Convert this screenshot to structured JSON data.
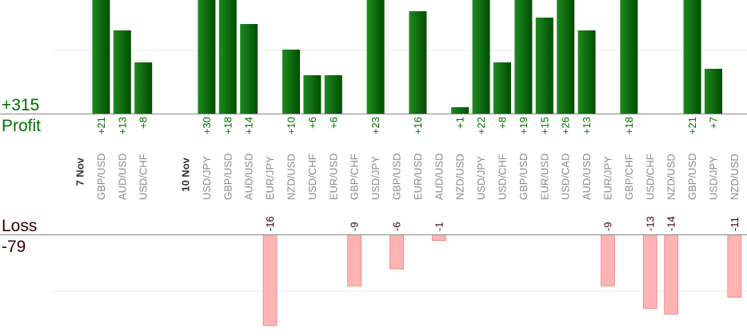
{
  "chart_data": {
    "type": "bar",
    "profit_label": "Profit",
    "loss_label": "Loss",
    "profit_total": "+315",
    "loss_total": "-79",
    "colors": {
      "profit_dark": "#004d00",
      "profit_light": "#1f8a1f",
      "profit_text": "#007000",
      "loss_fill": "#ffb3b3",
      "loss_border": "#f08080",
      "loss_text": "#3a0000",
      "pair_text": "#8a8a8a",
      "date_text": "#333333",
      "axis": "#888888",
      "grid": "#eeeeee"
    },
    "grid": true,
    "slots": [
      {
        "date": "7 Nov"
      },
      {
        "pair": "GBP/USD",
        "value": 21
      },
      {
        "pair": "AUD/USD",
        "value": 13
      },
      {
        "pair": "USD/CHF",
        "value": 8
      },
      {},
      {
        "date": "10 Nov"
      },
      {
        "pair": "USD/JPY",
        "value": 30
      },
      {
        "pair": "GBP/USD",
        "value": 18
      },
      {
        "pair": "AUD/USD",
        "value": 14
      },
      {
        "pair": "EUR/JPY",
        "value": -16
      },
      {
        "pair": "NZD/USD",
        "value": 10
      },
      {
        "pair": "USD/CHF",
        "value": 6
      },
      {
        "pair": "EUR/USD",
        "value": 6
      },
      {
        "pair": "GBP/CHF",
        "value": -9
      },
      {
        "pair": "USD/JPY",
        "value": 23
      },
      {
        "pair": "GBP/USD",
        "value": -6
      },
      {
        "pair": "EUR/USD",
        "value": 16
      },
      {
        "pair": "AUD/USD",
        "value": -1
      },
      {
        "pair": "NZD/USD",
        "value": 1
      },
      {
        "pair": "USD/JPY",
        "value": 22
      },
      {
        "pair": "USD/CHF",
        "value": 8
      },
      {
        "pair": "GBP/USD",
        "value": 19
      },
      {
        "pair": "EUR/USD",
        "value": 15
      },
      {
        "pair": "USD/CAD",
        "value": 26
      },
      {
        "pair": "AUD/USD",
        "value": 13
      },
      {
        "pair": "EUR/JPY",
        "value": -9
      },
      {
        "pair": "GBP/CHF",
        "value": 18
      },
      {
        "pair": "USD/CHF",
        "value": -13
      },
      {
        "pair": "NZD/USD",
        "value": -14
      },
      {
        "pair": "GBP/USD",
        "value": 21
      },
      {
        "pair": "USD/JPY",
        "value": 7
      },
      {
        "pair": "NZD/USD",
        "value": -11
      }
    ]
  }
}
